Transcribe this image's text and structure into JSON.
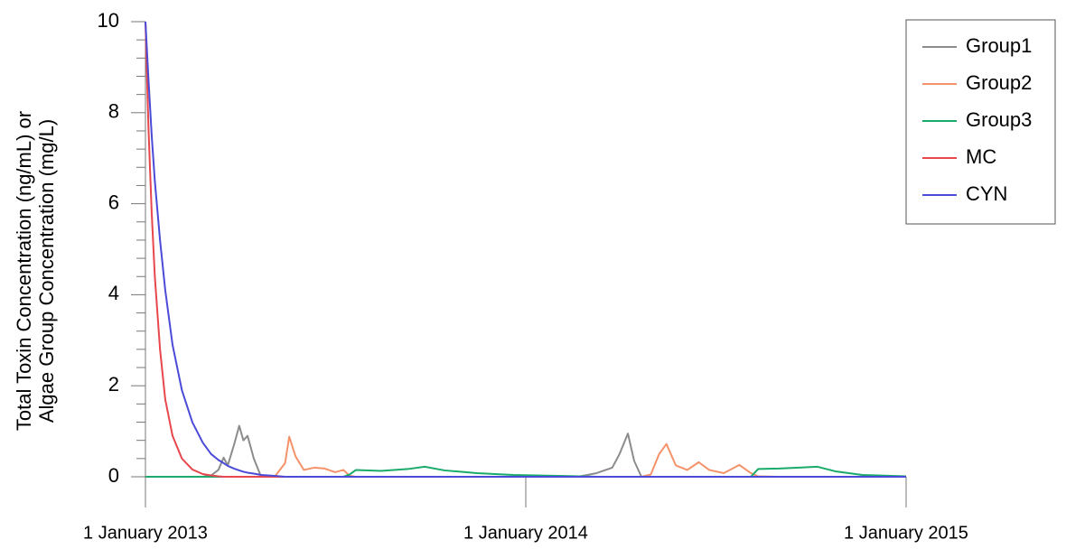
{
  "chart_data": {
    "type": "line",
    "ylabel": [
      "Total Toxin Concentration (ng/mL) or",
      "Algae Group Concentration (mg/L)"
    ],
    "x": [
      "2013-01-01",
      "2013-01-04",
      "2013-01-07",
      "2013-01-10",
      "2013-01-15",
      "2013-01-20",
      "2013-01-27",
      "2013-02-05",
      "2013-02-15",
      "2013-02-25",
      "2013-03-05",
      "2013-03-12",
      "2013-03-17",
      "2013-03-21",
      "2013-03-27",
      "2013-04-01",
      "2013-04-05",
      "2013-04-09",
      "2013-04-15",
      "2013-04-22",
      "2013-05-05",
      "2013-05-15",
      "2013-05-19",
      "2013-05-25",
      "2013-06-02",
      "2013-06-12",
      "2013-06-22",
      "2013-07-02",
      "2013-07-10",
      "2013-07-16",
      "2013-07-22",
      "2013-08-15",
      "2013-09-10",
      "2013-09-26",
      "2013-10-15",
      "2013-11-15",
      "2013-12-20",
      "2014-02-01",
      "2014-02-20",
      "2014-03-10",
      "2014-03-25",
      "2014-04-01",
      "2014-04-09",
      "2014-04-15",
      "2014-04-22",
      "2014-05-01",
      "2014-05-09",
      "2014-05-16",
      "2014-05-25",
      "2014-06-05",
      "2014-06-16",
      "2014-06-26",
      "2014-07-10",
      "2014-07-25",
      "2014-08-05",
      "2014-08-12",
      "2014-09-01",
      "2014-10-08",
      "2014-10-25",
      "2014-11-20",
      "2015-01-01"
    ],
    "series": [
      {
        "name": "Group1",
        "color": "#8c8c8c",
        "values": [
          0,
          0,
          0,
          0,
          0,
          0,
          0,
          0,
          0,
          0,
          0.03,
          0.15,
          0.42,
          0.25,
          0.7,
          1.12,
          0.8,
          0.9,
          0.4,
          0,
          0,
          0,
          0,
          0,
          0,
          0,
          0,
          0,
          0,
          0,
          0,
          0,
          0,
          0,
          0,
          0,
          0,
          0,
          0,
          0.08,
          0.2,
          0.5,
          0.95,
          0.35,
          0,
          0,
          0,
          0,
          0,
          0,
          0,
          0,
          0,
          0,
          0,
          0,
          0,
          0,
          0,
          0,
          0
        ]
      },
      {
        "name": "Group2",
        "color": "#f4926a",
        "values": [
          0,
          0,
          0,
          0,
          0,
          0,
          0,
          0,
          0,
          0,
          0,
          0,
          0,
          0,
          0,
          0,
          0,
          0,
          0,
          0,
          0,
          0.3,
          0.88,
          0.45,
          0.15,
          0.2,
          0.18,
          0.1,
          0.15,
          0.02,
          0,
          0,
          0,
          0,
          0,
          0,
          0,
          0,
          0,
          0,
          0,
          0,
          0,
          0,
          0,
          0.05,
          0.5,
          0.72,
          0.25,
          0.15,
          0.32,
          0.15,
          0.08,
          0.26,
          0.08,
          0.01,
          0,
          0,
          0,
          0,
          0
        ]
      },
      {
        "name": "Group3",
        "color": "#1aaa6a",
        "values": [
          0,
          0,
          0,
          0,
          0,
          0,
          0,
          0,
          0,
          0,
          0,
          0,
          0,
          0,
          0,
          0,
          0,
          0,
          0,
          0,
          0,
          0,
          0,
          0,
          0,
          0,
          0,
          0,
          0,
          0.05,
          0.15,
          0.13,
          0.17,
          0.22,
          0.14,
          0.08,
          0.04,
          0.02,
          0.01,
          0,
          0,
          0,
          0,
          0,
          0,
          0,
          0,
          0,
          0,
          0,
          0,
          0,
          0,
          0,
          0,
          0.17,
          0.18,
          0.22,
          0.12,
          0.04,
          0.01
        ]
      },
      {
        "name": "MC",
        "color": "#e8474c",
        "values": [
          10,
          7.6,
          5.8,
          4.4,
          2.8,
          1.7,
          0.9,
          0.4,
          0.16,
          0.06,
          0.03,
          0.01,
          0,
          0,
          0,
          0,
          0,
          0,
          0,
          0,
          0,
          0,
          0,
          0,
          0,
          0,
          0,
          0,
          0,
          0,
          0,
          0,
          0,
          0,
          0,
          0,
          0,
          0,
          0,
          0,
          0,
          0,
          0,
          0,
          0,
          0,
          0,
          0,
          0,
          0,
          0,
          0,
          0,
          0,
          0,
          0,
          0,
          0,
          0,
          0,
          0
        ]
      },
      {
        "name": "CYN",
        "color": "#4b4bd8",
        "values": [
          10,
          8.7,
          7.5,
          6.5,
          5.2,
          4.1,
          2.9,
          1.9,
          1.2,
          0.75,
          0.5,
          0.37,
          0.3,
          0.24,
          0.18,
          0.14,
          0.11,
          0.09,
          0.07,
          0.04,
          0.02,
          0,
          0,
          0,
          0,
          0,
          0,
          0,
          0,
          0,
          0,
          0,
          0,
          0,
          0,
          0,
          0,
          0,
          0,
          0,
          0,
          0,
          0,
          0,
          0,
          0,
          0,
          0,
          0,
          0,
          0,
          0,
          0,
          0,
          0,
          0,
          0,
          0,
          0,
          0,
          0
        ]
      }
    ],
    "xlim": [
      "2013-01-01",
      "2015-01-01"
    ],
    "xticks": [
      {
        "value": "2013-01-01",
        "label": "1 January 2013"
      },
      {
        "value": "2014-01-01",
        "label": "1 January 2014"
      },
      {
        "value": "2015-01-01",
        "label": "1 January 2015"
      }
    ],
    "ylim": [
      0,
      10
    ],
    "yticks": [
      0,
      2,
      4,
      6,
      8,
      10
    ],
    "yminorticks": [
      0.4,
      0.8,
      1.2,
      1.6,
      2.4,
      2.8,
      3.2,
      3.6,
      4.4,
      4.8,
      5.2,
      5.6,
      6.4,
      6.8,
      7.2,
      7.6,
      8.4,
      8.8,
      9.2,
      9.6
    ],
    "legend": "upper right"
  }
}
